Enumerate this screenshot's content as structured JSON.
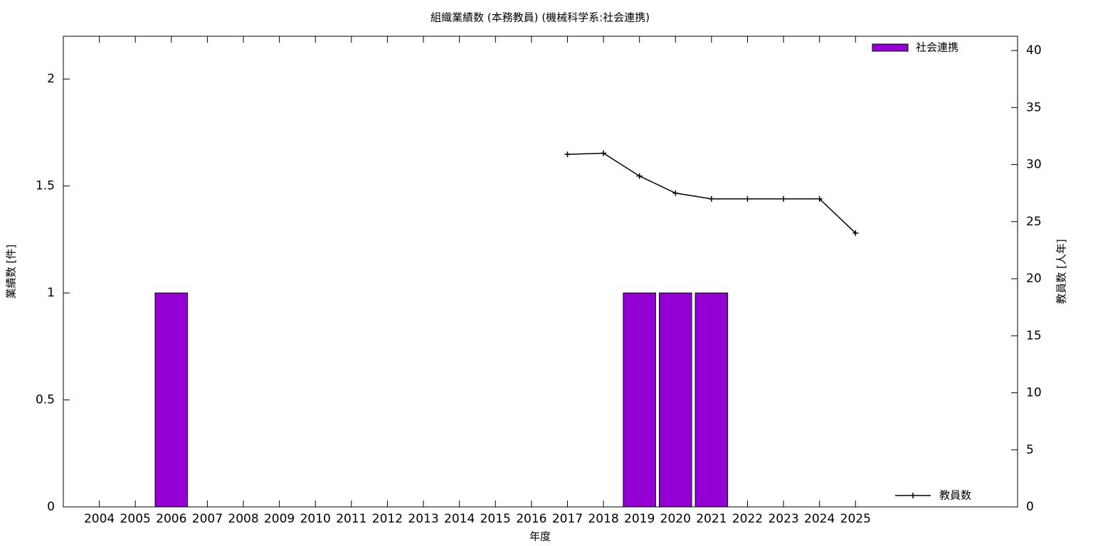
{
  "chart_data": {
    "type": "bar",
    "title": "組織業績数 (本務教員) (機械科学系:社会連携)",
    "x_label": "年度",
    "y_label": "業績数 [件]",
    "y2_label": "教員数 [人年]",
    "x": [
      2004,
      2005,
      2006,
      2007,
      2008,
      2009,
      2010,
      2011,
      2012,
      2013,
      2014,
      2015,
      2016,
      2017,
      2018,
      2019,
      2020,
      2021,
      2022,
      2023,
      2024,
      2025
    ],
    "xlim": [
      2003,
      2029.5
    ],
    "ylim": [
      0,
      2.2
    ],
    "yticks": [
      0,
      0.5,
      1,
      1.5,
      2
    ],
    "y2lim": [
      0,
      41.25
    ],
    "y2ticks": [
      0,
      5,
      10,
      15,
      20,
      25,
      30,
      35,
      40
    ],
    "series": [
      {
        "name": "社会連携",
        "type": "bar",
        "color": "#9400d3",
        "values": [
          0,
          0,
          1,
          0,
          0,
          0,
          0,
          0,
          0,
          0,
          0,
          0,
          0,
          0,
          0,
          1,
          1,
          1,
          0,
          0,
          0,
          0
        ]
      },
      {
        "name": "教員数",
        "type": "line",
        "axis": "y2",
        "color": "#000000",
        "values": [
          null,
          null,
          null,
          null,
          null,
          null,
          null,
          null,
          null,
          null,
          null,
          null,
          null,
          30.9,
          31.0,
          29.0,
          27.5,
          27.0,
          27.0,
          27.0,
          27.0,
          24.0
        ]
      }
    ]
  }
}
